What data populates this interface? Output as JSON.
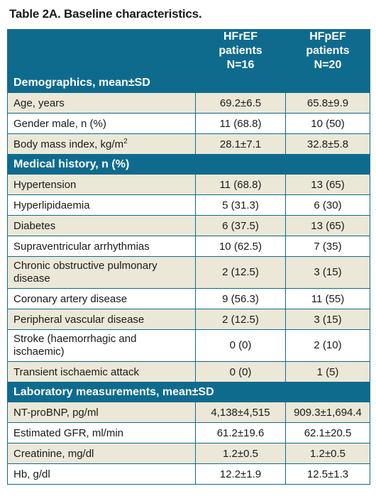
{
  "title": "Table 2A. Baseline characteristics.",
  "columns": {
    "hfref": {
      "line1": "HFrEF patients",
      "line2": "N=16"
    },
    "hfpef": {
      "line1": "HFpEF patients",
      "line2": "N=20"
    }
  },
  "sections": {
    "demographics": {
      "label": "Demographics, mean±SD",
      "rows": [
        {
          "label": "Age, years",
          "hfref": "69.2±6.5",
          "hfpef": "65.8±9.9"
        },
        {
          "label": "Gender male, n (%)",
          "hfref": "11 (68.8)",
          "hfpef": "10 (50)"
        },
        {
          "label": "Body mass index, kg/m",
          "sup": "2",
          "hfref": "28.1±7.1",
          "hfpef": "32.8±5.8"
        }
      ]
    },
    "history": {
      "label": "Medical history, n (%)",
      "rows": [
        {
          "label": "Hypertension",
          "hfref": "11 (68.8)",
          "hfpef": "13 (65)"
        },
        {
          "label": "Hyperlipidaemia",
          "hfref": "5 (31.3)",
          "hfpef": "6 (30)"
        },
        {
          "label": "Diabetes",
          "hfref": "6 (37.5)",
          "hfpef": "13 (65)"
        },
        {
          "label": "Supraventricular arrhythmias",
          "hfref": "10 (62.5)",
          "hfpef": "7 (35)"
        },
        {
          "label": "Chronic obstructive pulmonary disease",
          "hfref": "2 (12.5)",
          "hfpef": "3 (15)"
        },
        {
          "label": "Coronary artery disease",
          "hfref": "9 (56.3)",
          "hfpef": "11 (55)"
        },
        {
          "label": "Peripheral vascular disease",
          "hfref": "2 (12.5)",
          "hfpef": "3 (15)"
        },
        {
          "label": "Stroke (haemorrhagic and ischaemic)",
          "hfref": "0 (0)",
          "hfpef": "2 (10)"
        },
        {
          "label": "Transient ischaemic attack",
          "hfref": "0 (0)",
          "hfpef": "1 (5)"
        }
      ]
    },
    "lab": {
      "label": "Laboratory measurements, mean±SD",
      "rows": [
        {
          "label": "NT-proBNP, pg/ml",
          "hfref": "4,138±4,515",
          "hfpef": "909.3±1,694.4"
        },
        {
          "label": "Estimated GFR, ml/min",
          "hfref": "61.2±19.6",
          "hfpef": "62.1±20.5"
        },
        {
          "label": "Creatinine, mg/dl",
          "hfref": "1.2±0.5",
          "hfpef": "1.2±0.5"
        },
        {
          "label": "Hb, g/dl",
          "hfref": "12.2±1.9",
          "hfpef": "12.5±1.3"
        }
      ]
    }
  }
}
